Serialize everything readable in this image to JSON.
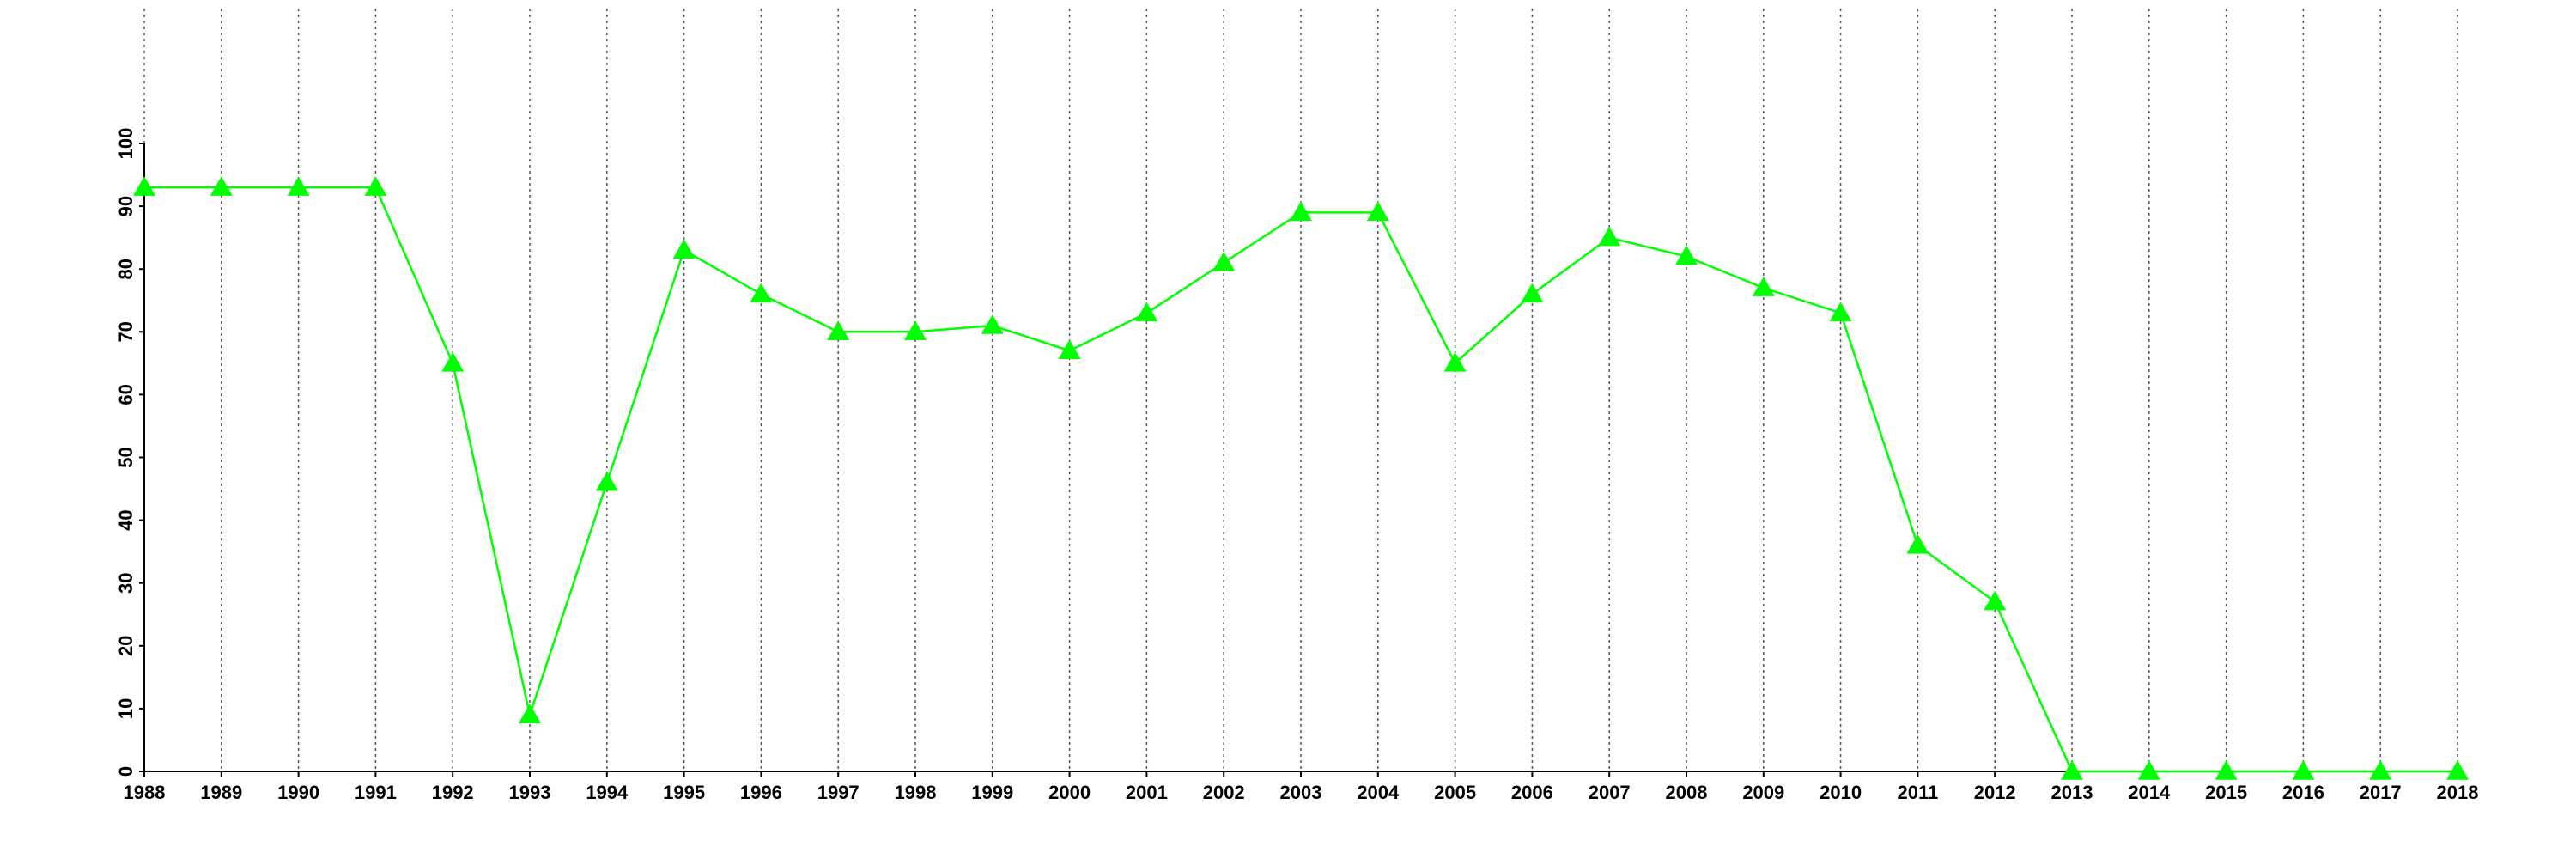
{
  "chart_data": {
    "type": "line",
    "x": [
      1988,
      1989,
      1990,
      1991,
      1992,
      1993,
      1994,
      1995,
      1996,
      1997,
      1998,
      1999,
      2000,
      2001,
      2002,
      2003,
      2004,
      2005,
      2006,
      2007,
      2008,
      2009,
      2010,
      2011,
      2012,
      2013,
      2014,
      2015,
      2016,
      2017,
      2018
    ],
    "series": [
      {
        "color": "#00ff00",
        "marker": "triangle",
        "values": [
          93,
          93,
          93,
          93,
          65,
          9,
          46,
          83,
          76,
          70,
          70,
          71,
          67,
          73,
          81,
          89,
          89,
          65,
          76,
          85,
          82,
          77,
          73,
          36,
          27,
          0,
          0,
          0,
          0,
          0,
          0
        ]
      }
    ],
    "xlim": [
      1988,
      2018
    ],
    "xticks": [
      1988,
      1989,
      1990,
      1991,
      1992,
      1993,
      1994,
      1995,
      1996,
      1997,
      1998,
      1999,
      2000,
      2001,
      2002,
      2003,
      2004,
      2005,
      2006,
      2007,
      2008,
      2009,
      2010,
      2011,
      2012,
      2013,
      2014,
      2015,
      2016,
      2017,
      2018
    ],
    "ylim": [
      0,
      100
    ],
    "yticks": [
      0,
      10,
      20,
      30,
      40,
      50,
      60,
      70,
      80,
      90,
      100
    ],
    "grid": "x"
  }
}
